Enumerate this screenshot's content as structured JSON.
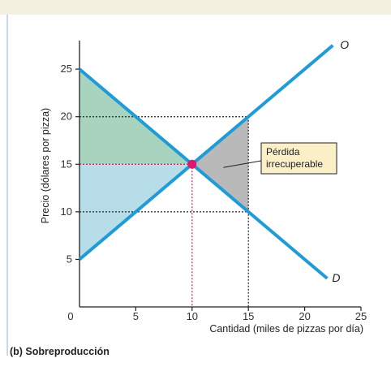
{
  "caption": "(b) Sobreproducción",
  "chart_data": {
    "type": "line",
    "xlabel": "Cantidad (miles de pizzas por día)",
    "ylabel": "Precio (dólares por pizza)",
    "xlim": [
      0,
      25
    ],
    "ylim": [
      0,
      28
    ],
    "x_ticks": [
      "0",
      "5",
      "10",
      "15",
      "20",
      "25"
    ],
    "y_ticks": [
      "5",
      "10",
      "15",
      "20",
      "25"
    ],
    "series": [
      {
        "name": "O",
        "x": [
          0,
          22.5
        ],
        "y": [
          5,
          27.5
        ]
      },
      {
        "name": "D",
        "x": [
          0,
          22
        ],
        "y": [
          25,
          3
        ]
      }
    ],
    "equilibrium": {
      "x": 10,
      "y": 15
    },
    "overproduction_quantity": 15,
    "supply_price_at_overproduction": 20,
    "demand_price_at_overproduction": 10,
    "annotation": [
      "Pérdida",
      "irrecuperable"
    ],
    "colors": {
      "supply": "#1f9bd7",
      "demand": "#1f9bd7",
      "consumer_surplus": "#a8d4bf",
      "producer_surplus": "#b6dde8",
      "deadweight_loss": "#b9b9b9",
      "equilibrium_point": "#e0156e",
      "equilibrium_guides": "#c0186a",
      "callout_fill": "#fbefc8"
    }
  }
}
